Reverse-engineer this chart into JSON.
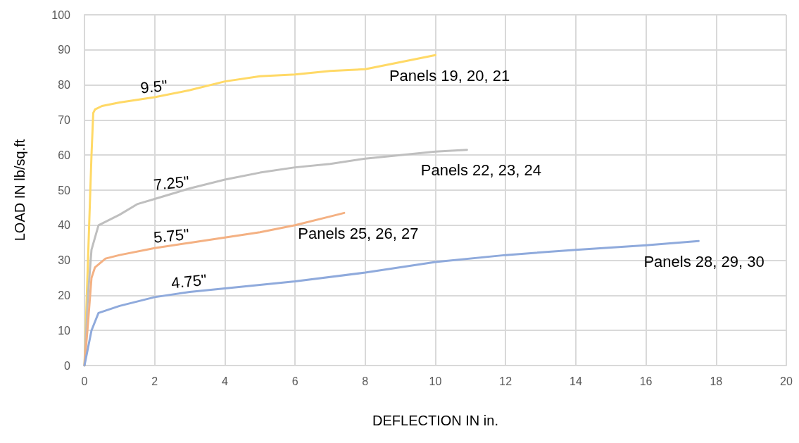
{
  "chart_data": {
    "type": "line",
    "xlabel": "DEFLECTION IN in.",
    "ylabel": "LOAD IN lb/sq.ft",
    "xlim": [
      0,
      20
    ],
    "xticks": [
      0,
      2,
      4,
      6,
      8,
      10,
      12,
      14,
      16,
      18,
      20
    ],
    "ylim": [
      0,
      100
    ],
    "yticks": [
      0,
      10,
      20,
      30,
      40,
      50,
      60,
      70,
      80,
      90,
      100
    ],
    "grid": true,
    "legend": false,
    "marker": "none",
    "line_style": "solid",
    "series": [
      {
        "name": "Panels 19, 20, 21",
        "color": "#ffd966",
        "x": [
          0,
          0.1,
          0.2,
          0.25,
          0.3,
          0.5,
          1,
          2,
          3,
          4,
          5,
          6,
          7,
          8,
          9,
          10
        ],
        "values": [
          0,
          30,
          60,
          72,
          73,
          74,
          75,
          76.5,
          78.5,
          81,
          82.5,
          83,
          84,
          84.5,
          86.5,
          88.5
        ]
      },
      {
        "name": "Panels 22, 23, 24",
        "color": "#bfbfbf",
        "x": [
          0,
          0.1,
          0.2,
          0.4,
          1,
          1.5,
          2,
          3,
          4,
          5,
          6,
          7,
          8,
          9,
          10,
          10.9
        ],
        "values": [
          0,
          20,
          33,
          40,
          43,
          46,
          47.5,
          50.5,
          53,
          55,
          56.5,
          57.5,
          59,
          60,
          61,
          61.5
        ]
      },
      {
        "name": "Panels 25, 26, 27",
        "color": "#f4b183",
        "x": [
          0,
          0.1,
          0.2,
          0.3,
          0.6,
          1,
          2,
          3,
          4,
          5,
          6,
          7,
          7.4
        ],
        "values": [
          0,
          12,
          25,
          28,
          30.5,
          31.5,
          33.5,
          35,
          36.5,
          38,
          40,
          42.5,
          43.5
        ]
      },
      {
        "name": "Panels 28, 29, 30",
        "color": "#8faadc",
        "x": [
          0,
          0.2,
          0.4,
          1,
          2,
          3,
          4,
          5,
          6,
          8,
          10,
          12,
          14,
          16,
          17.5
        ],
        "values": [
          0,
          10,
          15,
          17,
          19.5,
          21,
          22,
          23,
          24,
          26.5,
          29.5,
          31.5,
          33,
          34.3,
          35.5
        ]
      }
    ],
    "annotations": [
      {
        "text": "9.5\"",
        "x": 2,
        "y": 76.5
      },
      {
        "text": "7.25\"",
        "x": 2.5,
        "y": 49
      },
      {
        "text": "5.75\"",
        "x": 2.5,
        "y": 34
      },
      {
        "text": "4.75\"",
        "x": 3,
        "y": 21
      }
    ]
  }
}
